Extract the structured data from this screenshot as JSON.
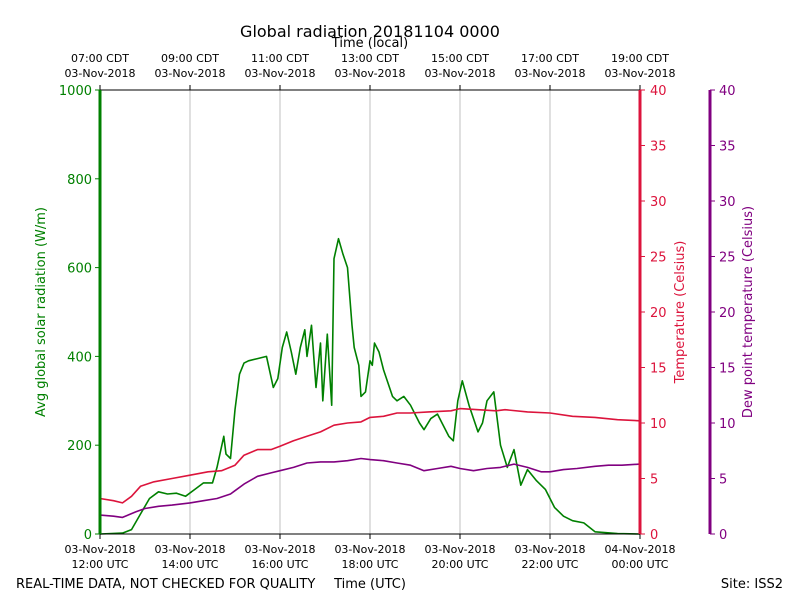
{
  "chart_data": {
    "type": "line",
    "title": "Global radiation 20181104 0000",
    "top_axis_label": "Time (local)",
    "bottom_axis_label": "Time (UTC)",
    "footer_left": "REAL-TIME DATA, NOT CHECKED FOR QUALITY",
    "footer_right": "Site: ISS2",
    "x_range_hours_utc": [
      12,
      24
    ],
    "bottom_ticks": [
      {
        "h": 12,
        "line1": "03-Nov-2018",
        "line2": "12:00 UTC"
      },
      {
        "h": 14,
        "line1": "03-Nov-2018",
        "line2": "14:00 UTC"
      },
      {
        "h": 16,
        "line1": "03-Nov-2018",
        "line2": "16:00 UTC"
      },
      {
        "h": 18,
        "line1": "03-Nov-2018",
        "line2": "18:00 UTC"
      },
      {
        "h": 20,
        "line1": "03-Nov-2018",
        "line2": "20:00 UTC"
      },
      {
        "h": 22,
        "line1": "03-Nov-2018",
        "line2": "22:00 UTC"
      },
      {
        "h": 24,
        "line1": "04-Nov-2018",
        "line2": "00:00 UTC"
      }
    ],
    "top_ticks": [
      {
        "h": 12,
        "line1": "07:00 CDT",
        "line2": "03-Nov-2018"
      },
      {
        "h": 14,
        "line1": "09:00 CDT",
        "line2": "03-Nov-2018"
      },
      {
        "h": 16,
        "line1": "11:00 CDT",
        "line2": "03-Nov-2018"
      },
      {
        "h": 18,
        "line1": "13:00 CDT",
        "line2": "03-Nov-2018"
      },
      {
        "h": 20,
        "line1": "15:00 CDT",
        "line2": "03-Nov-2018"
      },
      {
        "h": 22,
        "line1": "17:00 CDT",
        "line2": "03-Nov-2018"
      },
      {
        "h": 24,
        "line1": "19:00 CDT",
        "line2": "03-Nov-2018"
      }
    ],
    "vertical_gridlines_at_hours": [
      14,
      16,
      18,
      20,
      22
    ],
    "axes": {
      "radiation": {
        "label": "Avg global solar radiation (W/m)",
        "ylim": [
          0,
          1000
        ],
        "ticks": [
          0,
          200,
          400,
          600,
          800,
          1000
        ],
        "color": "#008000"
      },
      "temperature": {
        "label": "Temperature (Celsius)",
        "ylim": [
          0,
          40
        ],
        "ticks": [
          0,
          5,
          10,
          15,
          20,
          25,
          30,
          35,
          40
        ],
        "color": "#dc143c"
      },
      "dewpoint": {
        "label": "Dew point temperature (Celsius)",
        "ylim": [
          0,
          40
        ],
        "ticks": [
          0,
          5,
          10,
          15,
          20,
          25,
          30,
          35,
          40
        ],
        "color": "#800080"
      }
    },
    "series": [
      {
        "name": "Global radiation",
        "axis": "radiation",
        "x": [
          12.0,
          12.5,
          12.7,
          12.9,
          13.1,
          13.3,
          13.5,
          13.7,
          13.9,
          14.1,
          14.3,
          14.5,
          14.6,
          14.75,
          14.8,
          14.9,
          15.0,
          15.1,
          15.2,
          15.3,
          15.5,
          15.7,
          15.85,
          15.95,
          16.05,
          16.15,
          16.25,
          16.35,
          16.45,
          16.55,
          16.6,
          16.7,
          16.8,
          16.9,
          16.95,
          17.05,
          17.15,
          17.2,
          17.3,
          17.4,
          17.5,
          17.6,
          17.65,
          17.75,
          17.8,
          17.9,
          18.0,
          18.05,
          18.1,
          18.2,
          18.3,
          18.5,
          18.6,
          18.75,
          18.9,
          19.0,
          19.1,
          19.2,
          19.35,
          19.5,
          19.6,
          19.75,
          19.85,
          19.95,
          20.05,
          20.2,
          20.4,
          20.5,
          20.6,
          20.75,
          20.9,
          21.05,
          21.2,
          21.35,
          21.5,
          21.7,
          21.9,
          22.1,
          22.3,
          22.5,
          22.75,
          23.0,
          23.5,
          24.0
        ],
        "y": [
          0,
          2,
          10,
          45,
          80,
          95,
          90,
          92,
          85,
          100,
          115,
          115,
          150,
          220,
          180,
          170,
          280,
          360,
          385,
          390,
          395,
          400,
          330,
          350,
          420,
          455,
          410,
          360,
          420,
          460,
          400,
          470,
          330,
          430,
          300,
          450,
          290,
          620,
          665,
          630,
          600,
          470,
          420,
          380,
          310,
          320,
          390,
          380,
          430,
          410,
          370,
          310,
          300,
          310,
          290,
          270,
          250,
          235,
          260,
          270,
          250,
          220,
          210,
          300,
          345,
          290,
          230,
          250,
          300,
          320,
          200,
          150,
          190,
          110,
          145,
          120,
          100,
          60,
          40,
          30,
          25,
          5,
          1,
          0
        ]
      },
      {
        "name": "Temperature",
        "axis": "temperature",
        "x": [
          12.0,
          12.3,
          12.5,
          12.7,
          12.9,
          13.2,
          13.6,
          14.0,
          14.4,
          14.7,
          15.0,
          15.2,
          15.5,
          15.8,
          16.0,
          16.3,
          16.6,
          16.9,
          17.2,
          17.5,
          17.8,
          18.0,
          18.3,
          18.6,
          18.9,
          19.3,
          19.8,
          20.0,
          20.4,
          20.8,
          21.0,
          21.5,
          22.0,
          22.5,
          23.0,
          23.5,
          24.0
        ],
        "y": [
          3.2,
          3.0,
          2.8,
          3.4,
          4.3,
          4.7,
          5.0,
          5.3,
          5.6,
          5.7,
          6.2,
          7.1,
          7.6,
          7.6,
          7.9,
          8.4,
          8.8,
          9.2,
          9.8,
          10.0,
          10.1,
          10.5,
          10.6,
          10.9,
          10.9,
          11.0,
          11.1,
          11.3,
          11.2,
          11.1,
          11.2,
          11.0,
          10.9,
          10.6,
          10.5,
          10.3,
          10.2
        ]
      },
      {
        "name": "Dew point",
        "axis": "dewpoint",
        "x": [
          12.0,
          12.3,
          12.5,
          12.8,
          13.0,
          13.3,
          13.6,
          14.0,
          14.3,
          14.6,
          14.9,
          15.0,
          15.2,
          15.5,
          15.8,
          16.0,
          16.3,
          16.6,
          16.9,
          17.2,
          17.5,
          17.8,
          18.0,
          18.3,
          18.6,
          18.9,
          19.2,
          19.5,
          19.8,
          20.0,
          20.3,
          20.6,
          20.9,
          21.2,
          21.5,
          21.8,
          22.0,
          22.3,
          22.6,
          23.0,
          23.3,
          23.6,
          24.0
        ],
        "y": [
          1.7,
          1.6,
          1.5,
          2.0,
          2.3,
          2.5,
          2.6,
          2.8,
          3.0,
          3.2,
          3.6,
          3.9,
          4.5,
          5.2,
          5.5,
          5.7,
          6.0,
          6.4,
          6.5,
          6.5,
          6.6,
          6.8,
          6.7,
          6.6,
          6.4,
          6.2,
          5.7,
          5.9,
          6.1,
          5.9,
          5.7,
          5.9,
          6.0,
          6.3,
          6.0,
          5.6,
          5.6,
          5.8,
          5.9,
          6.1,
          6.2,
          6.2,
          6.3
        ]
      }
    ]
  }
}
